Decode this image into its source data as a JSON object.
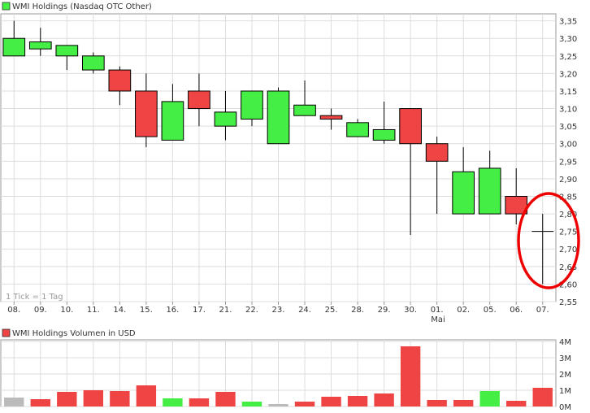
{
  "price_panel": {
    "title": "WMI Holdings (Nasdaq OTC Other)",
    "footnote": "1 Tick = 1 Tag",
    "x_ticks": [
      "08.",
      "09.",
      "10.",
      "11.",
      "14.",
      "15.",
      "16.",
      "17.",
      "21.",
      "22.",
      "23.",
      "24.",
      "25.",
      "28.",
      "29.",
      "30.",
      "01.",
      "02.",
      "05.",
      "06.",
      "07."
    ],
    "month_label": "Mai",
    "y_ticks": [
      "3,35",
      "3,30",
      "3,25",
      "3,20",
      "3,15",
      "3,10",
      "3,05",
      "3,00",
      "2,95",
      "2,90",
      "2,85",
      "2,80",
      "2,75",
      "2,70",
      "2,65",
      "2,60",
      "2,55"
    ]
  },
  "volume_panel": {
    "title": "WMI Holdings Volumen in USD",
    "y_ticks": [
      "4M",
      "3M",
      "2M",
      "1M",
      "0M"
    ]
  },
  "colors": {
    "up": "#44ee44",
    "down": "#ee4444",
    "neutral": "#bbbbbb",
    "grid": "#dddddd",
    "annotation": "#ee0000"
  },
  "chart_data": [
    {
      "type": "candlestick",
      "title": "WMI Holdings (Nasdaq OTC Other)",
      "categories": [
        "08.",
        "09.",
        "10.",
        "11.",
        "14.",
        "15.",
        "16.",
        "17.",
        "21.",
        "22.",
        "23.",
        "24.",
        "25.",
        "28.",
        "29.",
        "30.",
        "01.",
        "02.",
        "05.",
        "06.",
        "07."
      ],
      "ylim": [
        2.55,
        3.37
      ],
      "grid": true,
      "candles": [
        {
          "date": "08.",
          "open": 3.25,
          "high": 3.35,
          "low": 3.25,
          "close": 3.3
        },
        {
          "date": "09.",
          "open": 3.27,
          "high": 3.33,
          "low": 3.25,
          "close": 3.29
        },
        {
          "date": "10.",
          "open": 3.25,
          "high": 3.28,
          "low": 3.21,
          "close": 3.28
        },
        {
          "date": "11.",
          "open": 3.21,
          "high": 3.26,
          "low": 3.2,
          "close": 3.25
        },
        {
          "date": "14.",
          "open": 3.21,
          "high": 3.22,
          "low": 3.11,
          "close": 3.15
        },
        {
          "date": "15.",
          "open": 3.15,
          "high": 3.2,
          "low": 2.99,
          "close": 3.02
        },
        {
          "date": "16.",
          "open": 3.01,
          "high": 3.17,
          "low": 3.01,
          "close": 3.12
        },
        {
          "date": "17.",
          "open": 3.15,
          "high": 3.2,
          "low": 3.05,
          "close": 3.1
        },
        {
          "date": "21.",
          "open": 3.05,
          "high": 3.15,
          "low": 3.01,
          "close": 3.09
        },
        {
          "date": "22.",
          "open": 3.07,
          "high": 3.15,
          "low": 3.05,
          "close": 3.15
        },
        {
          "date": "23.",
          "open": 3.0,
          "high": 3.16,
          "low": 3.0,
          "close": 3.15
        },
        {
          "date": "24.",
          "open": 3.08,
          "high": 3.18,
          "low": 3.08,
          "close": 3.11
        },
        {
          "date": "25.",
          "open": 3.08,
          "high": 3.1,
          "low": 3.04,
          "close": 3.07
        },
        {
          "date": "28.",
          "open": 3.02,
          "high": 3.07,
          "low": 3.02,
          "close": 3.06
        },
        {
          "date": "29.",
          "open": 3.01,
          "high": 3.12,
          "low": 3.0,
          "close": 3.04
        },
        {
          "date": "30.",
          "open": 3.1,
          "high": 3.1,
          "low": 2.74,
          "close": 3.0
        },
        {
          "date": "01.",
          "open": 3.0,
          "high": 3.02,
          "low": 2.8,
          "close": 2.95
        },
        {
          "date": "02.",
          "open": 2.8,
          "high": 2.99,
          "low": 2.8,
          "close": 2.92
        },
        {
          "date": "05.",
          "open": 2.8,
          "high": 2.98,
          "low": 2.8,
          "close": 2.93
        },
        {
          "date": "06.",
          "open": 2.85,
          "high": 2.93,
          "low": 2.77,
          "close": 2.8
        },
        {
          "date": "07.",
          "open": 2.75,
          "high": 2.8,
          "low": 2.6,
          "close": 2.75
        }
      ],
      "annotations": [
        "hand-drawn red circle around last candle (07.)"
      ]
    },
    {
      "type": "bar",
      "title": "WMI Holdings Volumen in USD",
      "categories": [
        "08.",
        "09.",
        "10.",
        "11.",
        "14.",
        "15.",
        "16.",
        "17.",
        "21.",
        "22.",
        "23.",
        "24.",
        "25.",
        "28.",
        "29.",
        "30.",
        "01.",
        "02.",
        "05.",
        "06.",
        "07."
      ],
      "values": [
        0.55,
        0.45,
        0.9,
        1.0,
        0.95,
        1.3,
        0.5,
        0.5,
        0.9,
        0.3,
        0.15,
        0.3,
        0.6,
        0.65,
        0.8,
        3.7,
        0.4,
        0.4,
        0.95,
        0.35,
        1.15
      ],
      "bar_colors": [
        "neutral",
        "down",
        "down",
        "down",
        "down",
        "down",
        "up",
        "down",
        "down",
        "up",
        "neutral",
        "down",
        "down",
        "down",
        "down",
        "down",
        "down",
        "down",
        "up",
        "down",
        "down"
      ],
      "ylabel": "",
      "ylim": [
        0,
        4.1
      ],
      "grid": true
    }
  ]
}
